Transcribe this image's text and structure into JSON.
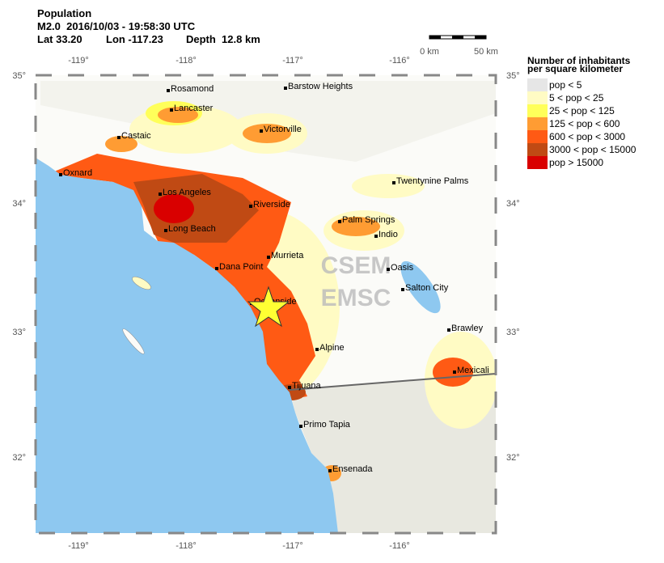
{
  "header": {
    "title": "Population",
    "event": "M2.0  2016/10/03 - 19:58:30 UTC",
    "lat": "Lat 33.20",
    "lon": "Lon -117.23",
    "depth": "Depth  12.8 km"
  },
  "scale_bar": {
    "start": "0 km",
    "end": "50 km"
  },
  "map": {
    "lon_labels": [
      "-119°",
      "-118°",
      "-117°",
      "-116°"
    ],
    "lat_labels": [
      "35°",
      "34°",
      "33°",
      "32°"
    ],
    "cities": [
      "Rosamond",
      "Barstow Heights",
      "Lancaster",
      "Victorville",
      "Castaic",
      "Oxnard",
      "Twentynine Palms",
      "Los Angeles",
      "Riverside",
      "Palm Springs",
      "Long Beach",
      "Indio",
      "Murrieta",
      "Dana Point",
      "Oasis",
      "Salton City",
      "Oceanside",
      "Brawley",
      "Alpine",
      "Mexicali",
      "Tijuana",
      "Primo Tapia",
      "Ensenada"
    ],
    "watermark": [
      "CSEM",
      "EMSC"
    ]
  },
  "legend": {
    "title": [
      "Number of inhabitants",
      "per square kilometer"
    ],
    "items": [
      {
        "label": "pop < 5",
        "color": "#e6e6e6"
      },
      {
        "label": "5 < pop < 25",
        "color": "#fffbc4"
      },
      {
        "label": "25 < pop < 125",
        "color": "#ffff5a"
      },
      {
        "label": "125 < pop < 600",
        "color": "#ff9c33"
      },
      {
        "label": "600 < pop < 3000",
        "color": "#ff5a14"
      },
      {
        "label": "3000 < pop < 15000",
        "color": "#c04a14"
      },
      {
        "label": "pop > 15000",
        "color": "#d90000"
      }
    ]
  }
}
